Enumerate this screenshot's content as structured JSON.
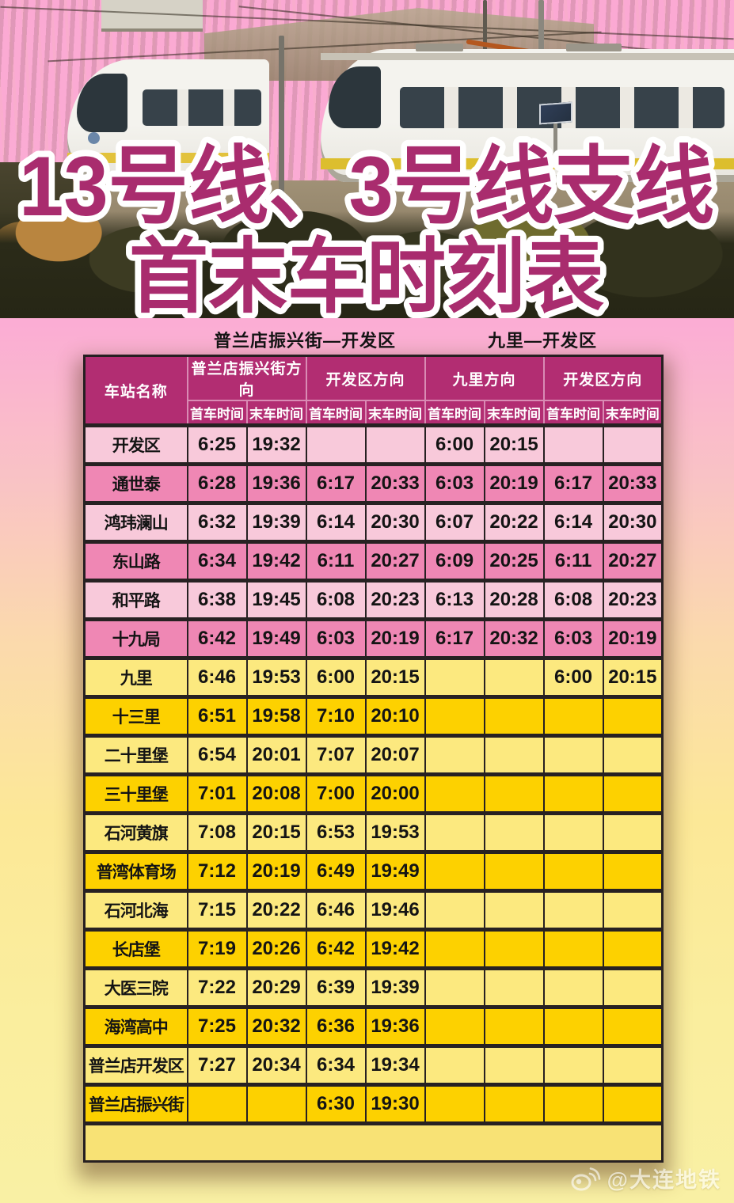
{
  "title": {
    "line1": "13号线、3号线支线",
    "line2": "首末车时刻表"
  },
  "sections": {
    "left": "普兰店振兴街—开发区",
    "right": "九里—开发区"
  },
  "table": {
    "station_header": "车站名称",
    "direction_headers": [
      "普兰店振兴街方向",
      "开发区方向",
      "九里方向",
      "开发区方向"
    ],
    "sub_headers": [
      "首车时间",
      "末车时间",
      "首车时间",
      "末车时间",
      "首车时间",
      "末车时间",
      "首车时间",
      "末车时间"
    ],
    "rows": [
      {
        "station": "开发区",
        "tone": "pink-light",
        "times": [
          "6:25",
          "19:32",
          "",
          "",
          "6:00",
          "20:15",
          "",
          ""
        ]
      },
      {
        "station": "通世泰",
        "tone": "pink-dark",
        "times": [
          "6:28",
          "19:36",
          "6:17",
          "20:33",
          "6:03",
          "20:19",
          "6:17",
          "20:33"
        ]
      },
      {
        "station": "鸿玮澜山",
        "tone": "pink-light",
        "times": [
          "6:32",
          "19:39",
          "6:14",
          "20:30",
          "6:07",
          "20:22",
          "6:14",
          "20:30"
        ]
      },
      {
        "station": "东山路",
        "tone": "pink-dark",
        "times": [
          "6:34",
          "19:42",
          "6:11",
          "20:27",
          "6:09",
          "20:25",
          "6:11",
          "20:27"
        ]
      },
      {
        "station": "和平路",
        "tone": "pink-light",
        "times": [
          "6:38",
          "19:45",
          "6:08",
          "20:23",
          "6:13",
          "20:28",
          "6:08",
          "20:23"
        ]
      },
      {
        "station": "十九局",
        "tone": "pink-dark",
        "times": [
          "6:42",
          "19:49",
          "6:03",
          "20:19",
          "6:17",
          "20:32",
          "6:03",
          "20:19"
        ]
      },
      {
        "station": "九里",
        "tone": "yellow-light",
        "times": [
          "6:46",
          "19:53",
          "6:00",
          "20:15",
          "",
          "",
          "6:00",
          "20:15"
        ]
      },
      {
        "station": "十三里",
        "tone": "yellow-dark",
        "times": [
          "6:51",
          "19:58",
          "7:10",
          "20:10",
          "",
          "",
          "",
          ""
        ]
      },
      {
        "station": "二十里堡",
        "tone": "yellow-light",
        "times": [
          "6:54",
          "20:01",
          "7:07",
          "20:07",
          "",
          "",
          "",
          ""
        ]
      },
      {
        "station": "三十里堡",
        "tone": "yellow-dark",
        "times": [
          "7:01",
          "20:08",
          "7:00",
          "20:00",
          "",
          "",
          "",
          ""
        ]
      },
      {
        "station": "石河黄旗",
        "tone": "yellow-light",
        "times": [
          "7:08",
          "20:15",
          "6:53",
          "19:53",
          "",
          "",
          "",
          ""
        ]
      },
      {
        "station": "普湾体育场",
        "tone": "yellow-dark",
        "times": [
          "7:12",
          "20:19",
          "6:49",
          "19:49",
          "",
          "",
          "",
          ""
        ]
      },
      {
        "station": "石河北海",
        "tone": "yellow-light",
        "times": [
          "7:15",
          "20:22",
          "6:46",
          "19:46",
          "",
          "",
          "",
          ""
        ]
      },
      {
        "station": "长店堡",
        "tone": "yellow-dark",
        "times": [
          "7:19",
          "20:26",
          "6:42",
          "19:42",
          "",
          "",
          "",
          ""
        ]
      },
      {
        "station": "大医三院",
        "tone": "yellow-light",
        "times": [
          "7:22",
          "20:29",
          "6:39",
          "19:39",
          "",
          "",
          "",
          ""
        ]
      },
      {
        "station": "海湾高中",
        "tone": "yellow-dark",
        "times": [
          "7:25",
          "20:32",
          "6:36",
          "19:36",
          "",
          "",
          "",
          ""
        ]
      },
      {
        "station": "普兰店开发区",
        "tone": "yellow-light",
        "times": [
          "7:27",
          "20:34",
          "6:34",
          "19:34",
          "",
          "",
          "",
          ""
        ]
      },
      {
        "station": "普兰店振兴街",
        "tone": "yellow-dark",
        "times": [
          "",
          "",
          "6:30",
          "19:30",
          "",
          "",
          "",
          ""
        ]
      }
    ]
  },
  "watermark": {
    "handle": "@大连地铁",
    "icon": "weibo-icon"
  },
  "colors": {
    "title_text": "#a92c6e",
    "header_bg": "#b22d72",
    "row_pink_light": "#f8c9da",
    "row_pink_dark": "#ef87b4",
    "row_yellow_light": "#fce97f",
    "row_yellow_dark": "#fdd100",
    "background_top": "#fba9d3",
    "background_bottom": "#f9f0a4",
    "border_dark": "#272122"
  }
}
